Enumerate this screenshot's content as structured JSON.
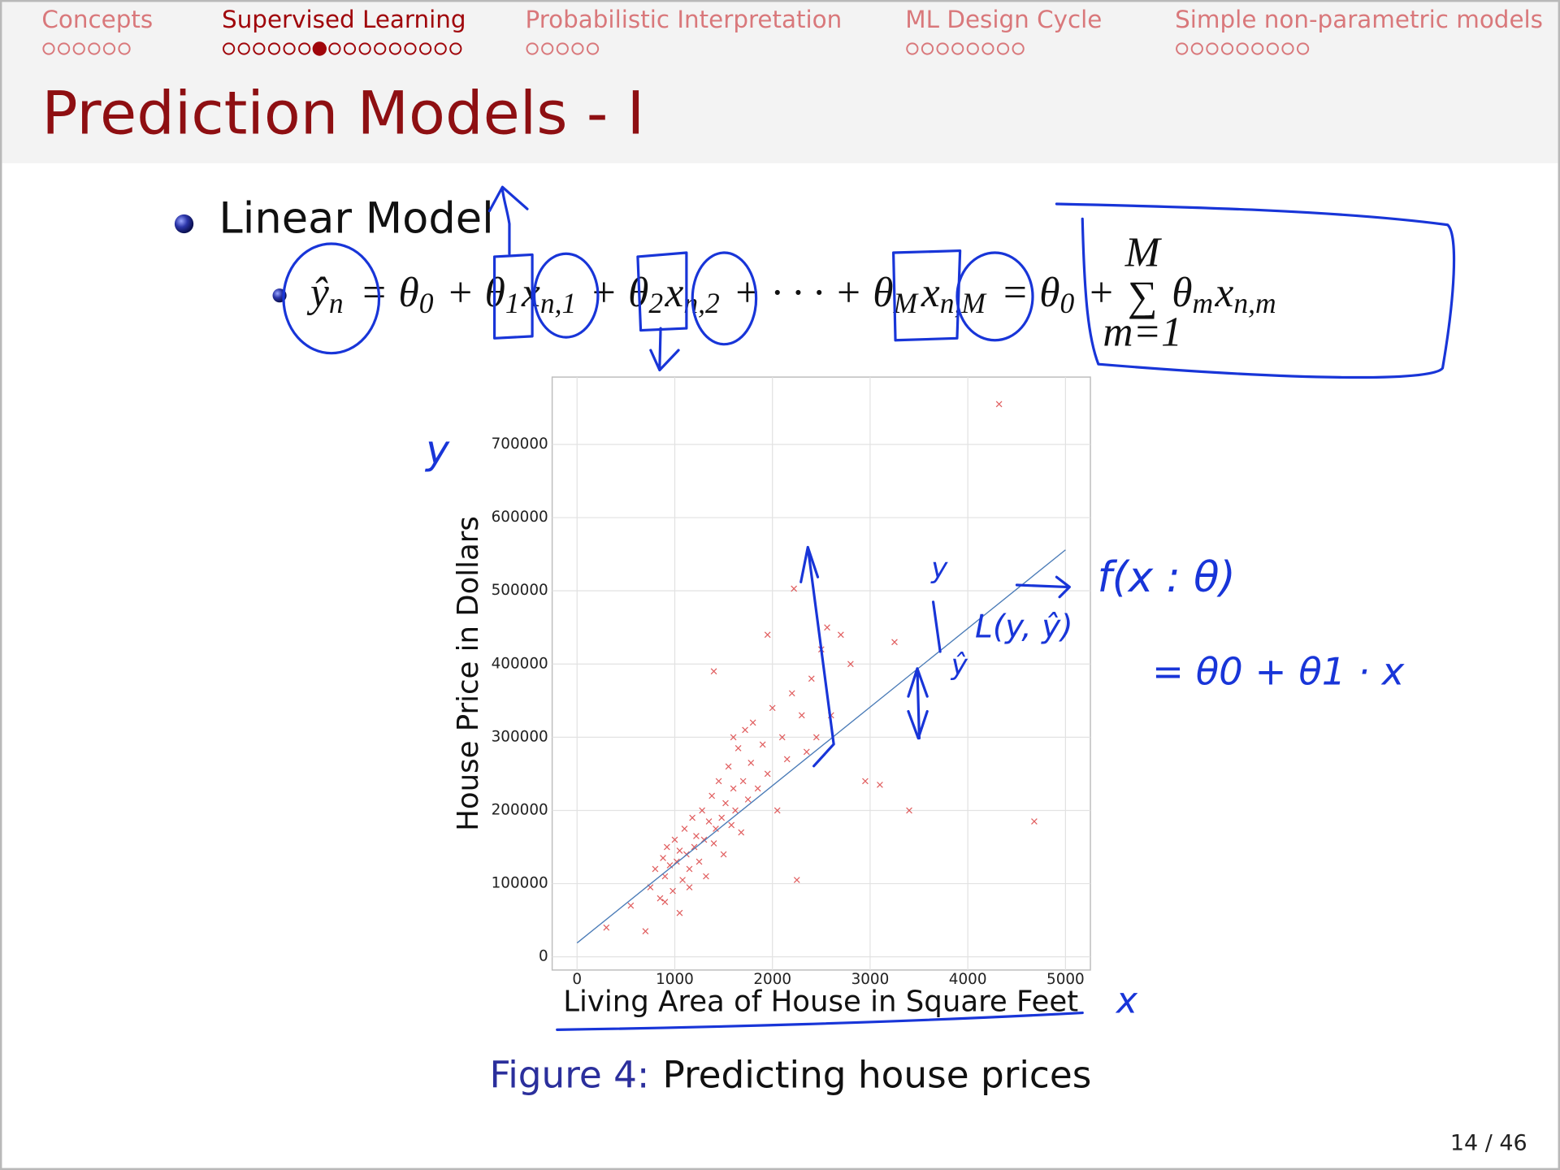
{
  "nav": [
    {
      "name": "Concepts",
      "frames": 6
    },
    {
      "name": "Supervised Learning",
      "frames": 16
    },
    {
      "name": "Probabilistic Interpretation",
      "frames": 5
    },
    {
      "name": "ML Design Cycle",
      "frames": 8
    },
    {
      "name": "Simple non-parametric models",
      "frames": 9
    }
  ],
  "current_section": 1,
  "current_frame": 6,
  "title": "Prediction Models - I",
  "bullet": "Linear Model",
  "formula": [
    {
      "text": "ŷ",
      "sub": "n"
    },
    {
      "text": " = θ",
      "sub": "0"
    },
    {
      "text": " + θ",
      "sub": "1"
    },
    {
      "text": "x",
      "sub": "n,1"
    },
    {
      "text": " + θ",
      "sub": "2"
    },
    {
      "text": "x",
      "sub": "n,2"
    },
    {
      "text": " + · · · + θ",
      "sub": "M"
    },
    {
      "text": "x",
      "sub": "n,M"
    },
    {
      "text": " = θ",
      "sub": "0"
    },
    {
      "text": " + "
    },
    {
      "text": "∑",
      "over": "M",
      "under": "m=1"
    },
    {
      "text": " θ",
      "sub": "m"
    },
    {
      "text": "x",
      "sub": "n,m"
    }
  ],
  "chart_data": {
    "type": "scatter",
    "xlabel": "Living Area of House in Square Feet",
    "ylabel": "House Price in Dollars",
    "xlim": [
      -255,
      5255
    ],
    "ylim": [
      -18000,
      792000
    ],
    "xticks": [
      0,
      1000,
      2000,
      3000,
      4000,
      5000
    ],
    "yticks": [
      0,
      100000,
      200000,
      300000,
      400000,
      500000,
      600000,
      700000
    ],
    "grid": true,
    "series": [
      {
        "type": "scatter",
        "color": "#d62728",
        "x": [
          300,
          550,
          700,
          750,
          800,
          850,
          880,
          900,
          920,
          950,
          980,
          1000,
          1020,
          1050,
          1080,
          1100,
          1120,
          1150,
          1180,
          1200,
          1220,
          1250,
          1280,
          1300,
          1320,
          1350,
          1380,
          1400,
          1420,
          1450,
          1480,
          1500,
          1520,
          1550,
          1580,
          1600,
          1620,
          1650,
          1680,
          1700,
          1720,
          1750,
          1780,
          1800,
          1850,
          1900,
          1950,
          2000,
          2050,
          2100,
          2150,
          2200,
          2250,
          2300,
          2350,
          2400,
          2450,
          2500,
          2560,
          2600,
          2700,
          2800,
          2950,
          3100,
          3250,
          3400,
          4320,
          4680,
          1050,
          1400,
          1950,
          2220,
          900,
          1150,
          1600
        ],
        "values": [
          40000,
          70000,
          35000,
          95000,
          120000,
          80000,
          135000,
          110000,
          150000,
          125000,
          90000,
          160000,
          130000,
          145000,
          105000,
          175000,
          140000,
          120000,
          190000,
          150000,
          165000,
          130000,
          200000,
          160000,
          110000,
          185000,
          220000,
          155000,
          175000,
          240000,
          190000,
          140000,
          210000,
          260000,
          180000,
          230000,
          200000,
          285000,
          170000,
          240000,
          310000,
          215000,
          265000,
          320000,
          230000,
          290000,
          250000,
          340000,
          200000,
          300000,
          270000,
          360000,
          105000,
          330000,
          280000,
          380000,
          300000,
          420000,
          450000,
          330000,
          440000,
          400000,
          240000,
          235000,
          430000,
          200000,
          755000,
          185000,
          60000,
          390000,
          440000,
          503000,
          75000,
          95000,
          300000
        ]
      },
      {
        "type": "line",
        "color": "#4a7bb7",
        "x": [
          0,
          5000
        ],
        "values": [
          19000,
          556000
        ]
      }
    ]
  },
  "caption": {
    "label": "Figure 4:",
    "text": "Predicting house prices"
  },
  "page": "14 / 46",
  "annotations": [
    {
      "text": "y"
    },
    {
      "text": "f(x : θ)"
    },
    {
      "text": "= θ0 + θ1 · x"
    },
    {
      "text": "L(y, ŷ)"
    },
    {
      "text": "y"
    },
    {
      "text": "ŷ"
    },
    {
      "text": "x"
    }
  ]
}
